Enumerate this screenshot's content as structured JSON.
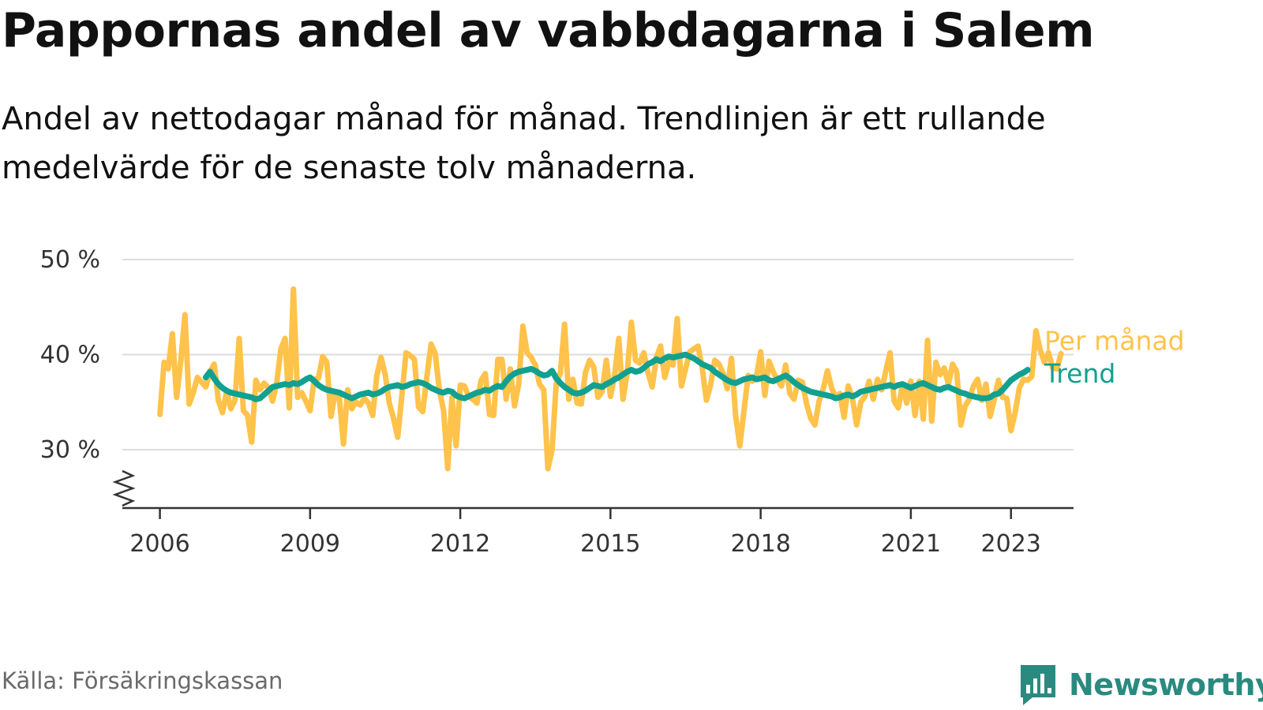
{
  "header": {
    "title": "Pappornas andel av vabbdagarna i Salem",
    "subtitle": "Andel av nettodagar månad för månad. Trendlinjen är ett rullande medelvärde för de senaste tolv månaderna."
  },
  "footer": {
    "source": "Källa: Försäkringskassan",
    "brand": "Newsworthy",
    "brand_icon": "bar-chart-speech-icon"
  },
  "colors": {
    "monthly": "#ffc24a",
    "trend": "#12a090",
    "grid": "#dddddd",
    "axis": "#333333",
    "brand": "#2a8a80"
  },
  "chart_data": {
    "type": "line",
    "title": "Pappornas andel av vabbdagarna i Salem",
    "xlabel": "",
    "ylabel": "",
    "xlim": [
      2005.25,
      2024.25
    ],
    "ylim": [
      25,
      50
    ],
    "y_axis_break": true,
    "y_ticks": [
      30,
      40,
      50
    ],
    "y_tick_labels": [
      "30 %",
      "40 %",
      "50 %"
    ],
    "x_ticks": [
      2006,
      2009,
      2012,
      2015,
      2018,
      2021,
      2023
    ],
    "x_tick_labels": [
      "2006",
      "2009",
      "2012",
      "2015",
      "2018",
      "2021",
      "2023"
    ],
    "grid": "horizontal",
    "legend": "direct labels at line ends",
    "series": [
      {
        "name": "Per månad",
        "color": "#ffc24a",
        "x_start": 2006.0,
        "x_step_months": 1,
        "values": [
          33.7,
          39.2,
          38.5,
          42.2,
          35.5,
          39.3,
          44.2,
          34.8,
          36.0,
          37.6,
          37.1,
          36.6,
          38.2,
          39.0,
          35.2,
          33.9,
          36.1,
          34.3,
          35.2,
          41.7,
          34.1,
          33.6,
          30.8,
          37.3,
          36.3,
          37.0,
          36.5,
          35.1,
          37.0,
          40.6,
          41.7,
          34.4,
          46.9,
          35.5,
          36.0,
          35.1,
          34.1,
          37.4,
          37.5,
          39.8,
          39.2,
          33.5,
          35.9,
          35.5,
          30.6,
          36.3,
          34.3,
          35.0,
          34.7,
          35.4,
          34.9,
          33.6,
          37.8,
          39.7,
          37.9,
          34.9,
          33.3,
          31.3,
          35.7,
          40.2,
          39.9,
          39.5,
          34.5,
          34.0,
          37.7,
          41.1,
          40.1,
          36.2,
          34.1,
          28.0,
          35.5,
          30.4,
          36.8,
          36.7,
          35.6,
          35.3,
          34.9,
          37.3,
          38.0,
          33.7,
          33.6,
          39.5,
          39.5,
          35.3,
          38.5,
          34.6,
          36.9,
          43.0,
          40.2,
          39.7,
          38.9,
          36.9,
          36.3,
          28.0,
          30.0,
          36.9,
          38.1,
          43.2,
          35.3,
          37.4,
          34.9,
          34.8,
          38.1,
          39.4,
          38.7,
          35.5,
          36.1,
          39.4,
          35.6,
          37.8,
          41.7,
          35.3,
          38.0,
          43.4,
          39.4,
          39.1,
          40.2,
          38.1,
          36.6,
          39.7,
          40.9,
          37.6,
          39.2,
          38.9,
          43.8,
          36.7,
          38.5,
          40.3,
          40.6,
          40.9,
          38.6,
          35.2,
          36.8,
          39.4,
          39.0,
          38.0,
          36.4,
          39.6,
          33.6,
          30.4,
          34.1,
          37.8,
          37.2,
          37.7,
          40.3,
          35.7,
          39.3,
          38.2,
          37.3,
          36.7,
          38.9,
          35.9,
          35.3,
          37.3,
          37.1,
          34.8,
          33.3,
          32.6,
          35.1,
          36.4,
          38.3,
          36.5,
          35.5,
          35.9,
          33.4,
          36.7,
          35.4,
          32.6,
          35.0,
          35.6,
          37.2,
          35.3,
          37.4,
          36.3,
          38.3,
          40.2,
          35.1,
          34.4,
          36.8,
          34.9,
          37.2,
          33.6,
          37.2,
          33.2,
          41.5,
          33.0,
          39.2,
          37.9,
          38.6,
          36.9,
          39.0,
          38.2,
          32.6,
          34.6,
          35.3,
          36.7,
          37.4,
          35.2,
          36.9,
          33.5,
          35.3,
          37.3,
          35.5,
          35.4,
          32.0,
          33.9,
          36.5,
          37.4,
          37.3,
          37.7,
          42.5,
          40.5,
          39.2,
          40.2,
          38.6,
          38.5,
          40.1
        ]
      },
      {
        "name": "Trend",
        "color": "#12a090",
        "x_start": 2006.9167,
        "x_step_months": 1,
        "values": [
          37.6,
          38.2,
          37.5,
          36.9,
          36.5,
          36.2,
          36.0,
          35.9,
          35.8,
          35.7,
          35.6,
          35.5,
          35.3,
          35.4,
          35.8,
          36.2,
          36.6,
          36.7,
          36.8,
          36.9,
          36.8,
          37.0,
          36.9,
          37.1,
          37.4,
          37.6,
          37.2,
          36.8,
          36.5,
          36.3,
          36.2,
          36.1,
          36.0,
          35.8,
          35.6,
          35.4,
          35.6,
          35.8,
          35.9,
          36.0,
          35.8,
          35.9,
          36.1,
          36.4,
          36.6,
          36.7,
          36.8,
          36.6,
          36.7,
          36.9,
          37.0,
          37.1,
          37.0,
          36.8,
          36.5,
          36.3,
          36.1,
          36.0,
          36.2,
          36.1,
          35.7,
          35.5,
          35.4,
          35.6,
          35.8,
          36.0,
          36.1,
          36.3,
          36.2,
          36.5,
          36.7,
          36.6,
          37.2,
          37.7,
          38.0,
          38.2,
          38.3,
          38.4,
          38.5,
          38.3,
          38.0,
          37.8,
          37.9,
          38.3,
          37.5,
          37.0,
          36.6,
          36.3,
          36.0,
          35.9,
          36.0,
          36.2,
          36.5,
          36.8,
          36.7,
          36.6,
          36.9,
          37.1,
          37.4,
          37.6,
          37.9,
          38.2,
          38.4,
          38.2,
          38.3,
          38.6,
          39.0,
          39.2,
          39.5,
          39.3,
          39.6,
          39.8,
          39.7,
          39.8,
          39.9,
          40.0,
          39.8,
          39.6,
          39.3,
          39.0,
          38.8,
          38.6,
          38.2,
          37.9,
          37.6,
          37.3,
          37.1,
          37.0,
          37.2,
          37.4,
          37.5,
          37.6,
          37.4,
          37.5,
          37.6,
          37.3,
          37.2,
          37.4,
          37.6,
          37.8,
          37.5,
          37.1,
          36.8,
          36.5,
          36.3,
          36.1,
          36.0,
          35.9,
          35.8,
          35.7,
          35.6,
          35.4,
          35.5,
          35.7,
          35.8,
          35.6,
          35.8,
          36.1,
          36.2,
          36.3,
          36.4,
          36.5,
          36.6,
          36.7,
          36.8,
          36.6,
          36.8,
          36.9,
          36.7,
          36.5,
          36.7,
          36.9,
          37.0,
          36.8,
          36.6,
          36.4,
          36.3,
          36.5,
          36.6,
          36.4,
          36.2,
          36.0,
          35.9,
          35.7,
          35.6,
          35.5,
          35.4,
          35.4,
          35.5,
          35.8,
          35.9,
          36.3,
          36.8,
          37.3,
          37.6,
          37.9,
          38.1,
          38.4
        ]
      }
    ],
    "annotations": [
      "Per månad",
      "Trend"
    ]
  }
}
